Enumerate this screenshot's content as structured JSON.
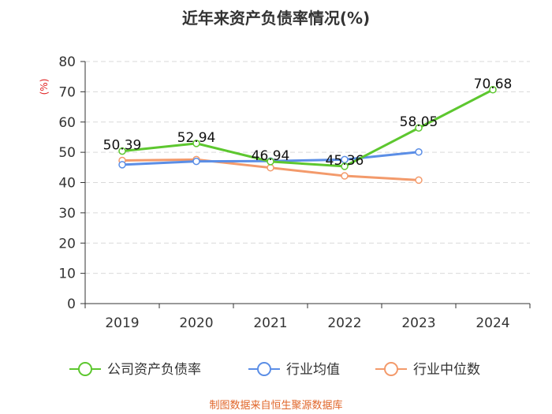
{
  "chart_data": {
    "type": "line",
    "title": "近年来资产负债率情况(%)",
    "xlabel": "",
    "ylabel": "(%)",
    "ylim": [
      0,
      80
    ],
    "yticks": [
      0,
      10,
      20,
      30,
      40,
      50,
      60,
      70,
      80
    ],
    "categories": [
      "2019",
      "2020",
      "2021",
      "2022",
      "2023",
      "2024"
    ],
    "grid": true,
    "legend_position": "bottom",
    "series": [
      {
        "name": "公司资产负债率",
        "color": "#5dc72f",
        "values": [
          50.39,
          52.94,
          46.94,
          45.36,
          58.05,
          70.68
        ],
        "labels": [
          "50.39",
          "52.94",
          "46.94",
          "45.36",
          "58.05",
          "70.68"
        ]
      },
      {
        "name": "行业均值",
        "color": "#5b8ee6",
        "values": [
          45.9,
          47.0,
          47.1,
          47.6,
          50.1,
          null
        ]
      },
      {
        "name": "行业中位数",
        "color": "#f39a6b",
        "values": [
          47.3,
          47.6,
          44.9,
          42.2,
          40.8,
          null
        ]
      }
    ],
    "source": "制图数据来自恒生聚源数据库"
  }
}
